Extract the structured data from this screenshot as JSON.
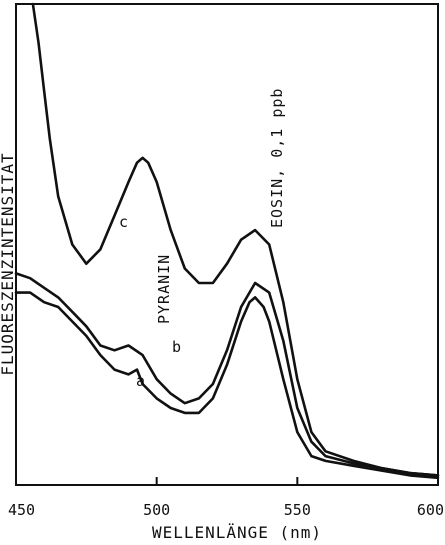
{
  "chart_data": {
    "type": "line",
    "xlabel": "WELLENLÄNGE (nm)",
    "ylabel": "FLUORESZENZINTENSITÄT",
    "xlim": [
      450,
      600
    ],
    "ylim": [
      0,
      100
    ],
    "x_ticks": [
      450,
      500,
      550,
      600
    ],
    "x_tick_labels": [
      "450",
      "500",
      "550",
      "600"
    ],
    "y_ticks_labeled": false,
    "grid": false,
    "legend": "none",
    "annotations": {
      "pyranin": "PYRANIN",
      "eosin": "EOSIN, 0,1 ppb"
    },
    "series": [
      {
        "name": "a",
        "x": [
          450,
          455,
          460,
          465,
          470,
          475,
          480,
          485,
          490,
          493,
          495,
          500,
          505,
          510,
          515,
          520,
          525,
          530,
          533,
          535,
          538,
          540,
          545,
          550,
          555,
          560,
          570,
          580,
          590,
          600
        ],
        "y": [
          40,
          40,
          38,
          37,
          34,
          31,
          27,
          24,
          23,
          24,
          21,
          18,
          16,
          15,
          15,
          18,
          25,
          34,
          38,
          39,
          37,
          34,
          22,
          11,
          6,
          5,
          4,
          3,
          2,
          1.5
        ]
      },
      {
        "name": "b",
        "x": [
          450,
          455,
          460,
          465,
          470,
          475,
          480,
          485,
          490,
          495,
          500,
          505,
          510,
          515,
          520,
          525,
          530,
          535,
          540,
          545,
          550,
          555,
          560,
          570,
          580,
          590,
          600
        ],
        "y": [
          44,
          43,
          41,
          39,
          36,
          33,
          29,
          28,
          29,
          27,
          22,
          19,
          17,
          18,
          21,
          28,
          37,
          42,
          40,
          30,
          16,
          9,
          6,
          4.5,
          3.5,
          2.5,
          2
        ]
      },
      {
        "name": "c",
        "x": [
          456,
          458,
          460,
          462,
          465,
          470,
          475,
          480,
          485,
          490,
          493,
          495,
          497,
          500,
          505,
          510,
          515,
          520,
          525,
          530,
          535,
          540,
          545,
          550,
          555,
          560,
          570,
          580,
          590,
          600
        ],
        "y": [
          100,
          92,
          82,
          72,
          60,
          50,
          46,
          49,
          56,
          63,
          67,
          68,
          67,
          63,
          53,
          45,
          42,
          42,
          46,
          51,
          53,
          50,
          38,
          22,
          11,
          7,
          5,
          3.5,
          2.5,
          2
        ]
      }
    ]
  }
}
